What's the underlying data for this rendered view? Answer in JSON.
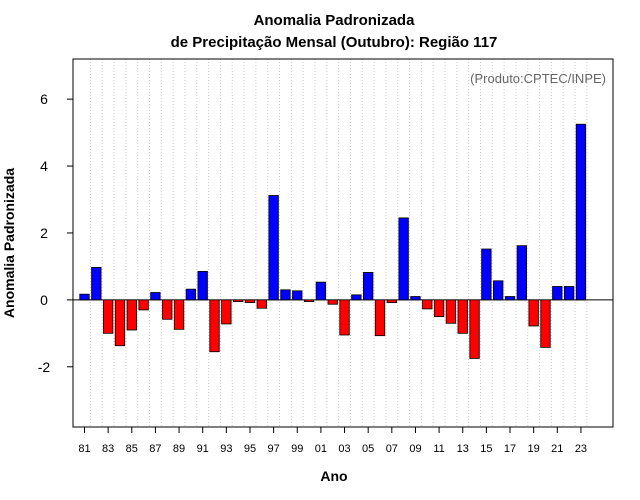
{
  "chart_data": {
    "type": "bar",
    "title": "Anomalia Padronizada",
    "subtitle": "de Precipitação Mensal (Outubro): Região 117",
    "xlabel": "Ano",
    "ylabel": "Anomalia Padronizada",
    "credit": "(Produto:CPTEC/INPE)",
    "ylim": [
      -3.8,
      7.2
    ],
    "yticks": [
      -2,
      0,
      2,
      4,
      6
    ],
    "ytick_labels": [
      "-2",
      "0",
      "2",
      "4",
      "6"
    ],
    "grid": "vertical dotted",
    "categories": [
      "81",
      "82",
      "83",
      "84",
      "85",
      "86",
      "87",
      "88",
      "89",
      "90",
      "91",
      "92",
      "93",
      "94",
      "95",
      "96",
      "97",
      "98",
      "99",
      "00",
      "01",
      "02",
      "03",
      "04",
      "05",
      "06",
      "07",
      "08",
      "09",
      "10",
      "11",
      "12",
      "13",
      "14",
      "15",
      "16",
      "17",
      "18",
      "19",
      "20",
      "21",
      "22",
      "23"
    ],
    "xtick_labels": [
      "81",
      "83",
      "85",
      "87",
      "89",
      "91",
      "93",
      "95",
      "97",
      "99",
      "01",
      "03",
      "05",
      "07",
      "09",
      "11",
      "13",
      "15",
      "17",
      "19",
      "21",
      "23"
    ],
    "values": [
      0.17,
      0.97,
      -1.0,
      -1.37,
      -0.9,
      -0.3,
      0.22,
      -0.58,
      -0.88,
      0.32,
      0.85,
      -1.55,
      -0.72,
      -0.05,
      -0.08,
      -0.25,
      3.12,
      0.3,
      0.27,
      -0.05,
      0.53,
      -0.13,
      -1.05,
      0.15,
      0.82,
      -1.07,
      -0.08,
      2.45,
      0.1,
      -0.27,
      -0.5,
      -0.7,
      -1.0,
      -1.75,
      1.52,
      0.57,
      0.1,
      1.62,
      -0.78,
      -1.42,
      0.4,
      0.4,
      5.25
    ],
    "colors": {
      "positive": "#0000ff",
      "negative": "#ff0000",
      "outline": "#000000",
      "grid": "#cccccc",
      "credit": "#666666"
    }
  }
}
